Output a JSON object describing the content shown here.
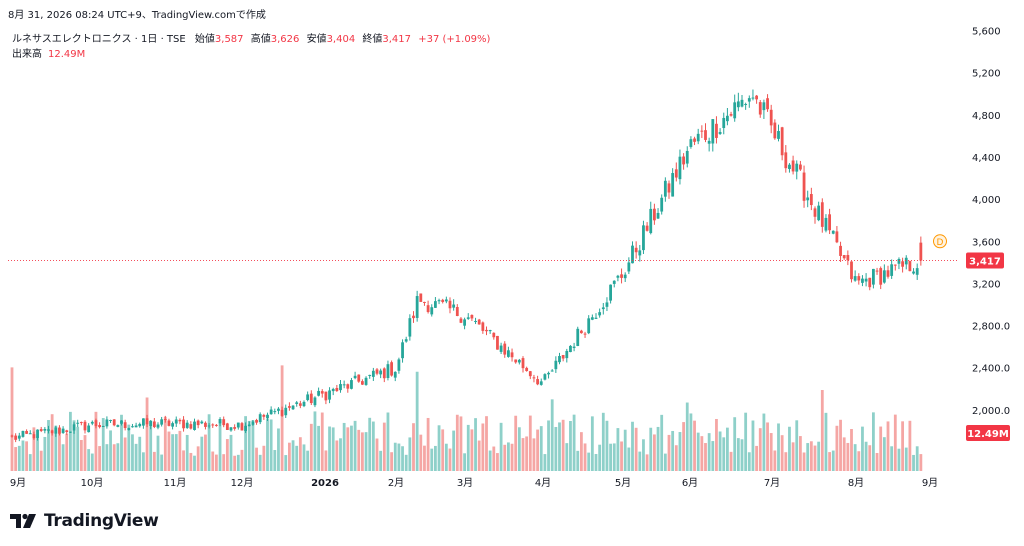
{
  "header": {
    "snapshot_line": "8月 31, 2026 08:24 UTC+9、TradingView.comで作成"
  },
  "legend": {
    "symbol": "ルネサスエレクトロニクス · 1日 · TSE",
    "open_label": "始値",
    "open": "3,587",
    "high_label": "高値",
    "high": "3,626",
    "low_label": "安値",
    "low": "3,404",
    "close_label": "終値",
    "close": "3,417",
    "change": "+37 (+1.09%)",
    "volume_label": "出来高",
    "volume": "12.49M"
  },
  "badges": {
    "price": "3,417",
    "volume": "12.49M",
    "dividend": "D"
  },
  "brand": {
    "name": "TradingView"
  },
  "colors": {
    "up": "#26a69a",
    "down": "#ef5350",
    "up_volume": "#8ed0c9",
    "down_volume": "#f5a6a4",
    "badge": "#f23645",
    "dividend": "#ff9800"
  },
  "chart_data": {
    "type": "candlestick",
    "y_ticks": [
      "5,600",
      "5,200",
      "4,800",
      "4,400",
      "4,000",
      "3,600",
      "3,200",
      "2,800.0",
      "2,400.0",
      "2,000.0"
    ],
    "ylim": [
      1600,
      5700
    ],
    "x_labels": [
      "9月",
      "10月",
      "11月",
      "12月",
      "2026",
      "2月",
      "3月",
      "4月",
      "5月",
      "6月",
      "7月",
      "8月",
      "9月"
    ],
    "last_close": 3417,
    "last_volume_m": 12.49,
    "monthly_path": [
      {
        "month": "2025-09",
        "price": 1730
      },
      {
        "month": "2025-10",
        "price": 1860
      },
      {
        "month": "2025-11",
        "price": 1870
      },
      {
        "month": "2025-12",
        "price": 1860
      },
      {
        "month": "2026-01",
        "price": 2150
      },
      {
        "month": "2026-02",
        "price": 2400
      },
      {
        "month": "2026-02-20",
        "price": 3050
      },
      {
        "month": "2026-03",
        "price": 2900
      },
      {
        "month": "2026-04",
        "price": 2250
      },
      {
        "month": "2026-05",
        "price": 3300
      },
      {
        "month": "2026-06",
        "price": 4500
      },
      {
        "month": "2026-07-05",
        "price": 5000
      },
      {
        "month": "2026-08",
        "price": 3200
      },
      {
        "month": "2026-08-31",
        "price": 3417
      }
    ]
  }
}
